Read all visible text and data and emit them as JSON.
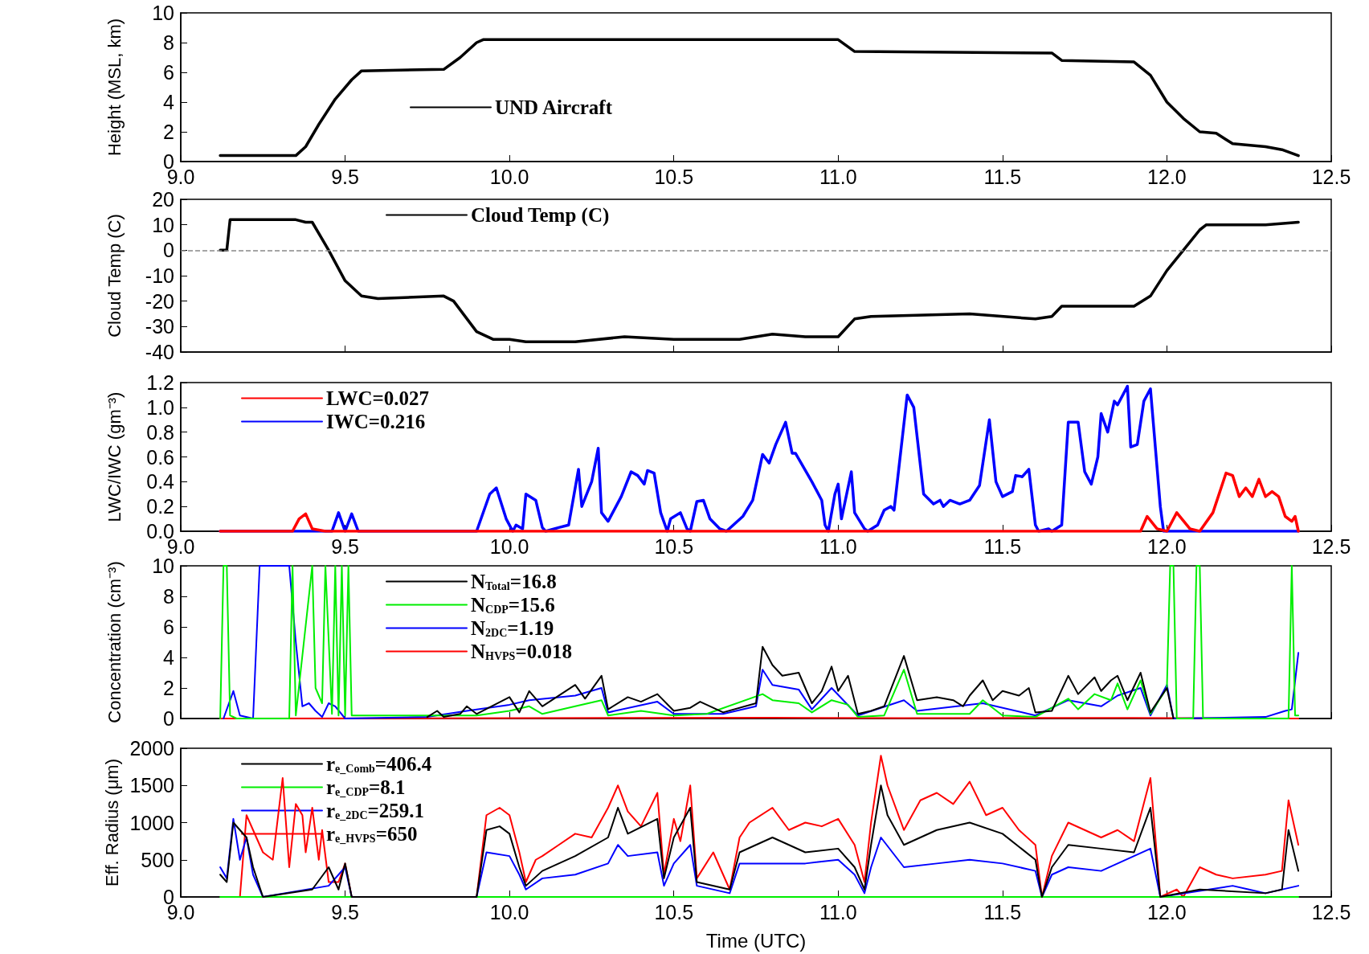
{
  "chart_data": [
    {
      "type": "line",
      "ylabel": "Height (MSL, km)",
      "xlim": [
        9,
        12.5
      ],
      "xticks": [
        {
          "value": 9,
          "label": "9.0"
        },
        {
          "value": 9.5,
          "label": "9.5"
        },
        {
          "value": 10,
          "label": "10.0"
        },
        {
          "value": 10.5,
          "label": "10.5"
        },
        {
          "value": 11,
          "label": "11.0"
        },
        {
          "value": 11.5,
          "label": "11.5"
        },
        {
          "value": 12,
          "label": "12.0"
        },
        {
          "value": 12.5,
          "label": "12.5"
        }
      ],
      "ylim": [
        0,
        10
      ],
      "yticks": [
        0,
        2,
        4,
        6,
        8,
        10
      ],
      "legend": "bottom left",
      "grid": false,
      "marker": "none",
      "series": [
        {
          "name": "UND Aircraft",
          "color": "#000000",
          "x": [
            9.12,
            9.35,
            9.38,
            9.42,
            9.47,
            9.52,
            9.55,
            9.8,
            9.85,
            9.9,
            9.92,
            11.0,
            11.05,
            11.65,
            11.68,
            11.9,
            11.95,
            12.0,
            12.05,
            12.1,
            12.15,
            12.2,
            12.3,
            12.35,
            12.4
          ],
          "values": [
            0.4,
            0.4,
            1.0,
            2.5,
            4.2,
            5.5,
            6.1,
            6.2,
            7.0,
            8.0,
            8.2,
            8.2,
            7.4,
            7.3,
            6.8,
            6.7,
            5.8,
            4.0,
            2.9,
            2.0,
            1.9,
            1.2,
            1.0,
            0.8,
            0.4
          ]
        }
      ]
    },
    {
      "type": "line",
      "ylabel": "Cloud Temp (C)",
      "xlim": [
        9,
        12.5
      ],
      "xticks": [
        {
          "value": 9,
          "label": null
        },
        {
          "value": 9.5,
          "label": null
        },
        {
          "value": 10,
          "label": null
        },
        {
          "value": 10.5,
          "label": null
        },
        {
          "value": 11,
          "label": null
        },
        {
          "value": 11.5,
          "label": null
        },
        {
          "value": 12,
          "label": null
        },
        {
          "value": 12.5,
          "label": null
        }
      ],
      "ylim": [
        -40,
        20
      ],
      "yticks": [
        -40,
        -30,
        -20,
        -10,
        0,
        10,
        20
      ],
      "tick_labels": "y",
      "legend": "top",
      "grid": false,
      "marker": "none",
      "ref_lines": [
        {
          "axis": "y",
          "value": 0,
          "color": "#888888",
          "line_style": "dashed"
        }
      ],
      "series": [
        {
          "name": "Cloud Temp (C)",
          "color": "#000000",
          "x": [
            9.12,
            9.14,
            9.15,
            9.25,
            9.35,
            9.38,
            9.4,
            9.45,
            9.5,
            9.55,
            9.6,
            9.8,
            9.83,
            9.9,
            9.95,
            10.0,
            10.05,
            10.2,
            10.35,
            10.5,
            10.7,
            10.8,
            10.9,
            11.0,
            11.05,
            11.1,
            11.4,
            11.6,
            11.65,
            11.68,
            11.9,
            11.95,
            12.0,
            12.05,
            12.1,
            12.12,
            12.2,
            12.3,
            12.4
          ],
          "values": [
            0,
            0,
            12,
            12,
            12,
            11,
            11,
            0,
            -12,
            -18,
            -19,
            -18,
            -20,
            -32,
            -35,
            -35,
            -36,
            -36,
            -34,
            -35,
            -35,
            -33,
            -34,
            -34,
            -27,
            -26,
            -25,
            -27,
            -26,
            -22,
            -22,
            -18,
            -8,
            0,
            8,
            10,
            10,
            10,
            11
          ]
        }
      ]
    },
    {
      "type": "line",
      "ylabel": "LWC/IWC (gm⁻³)",
      "xlim": [
        9,
        12.5
      ],
      "xticks": [
        {
          "value": 9,
          "label": "9.0"
        },
        {
          "value": 9.5,
          "label": "9.5"
        },
        {
          "value": 10,
          "label": "10.0"
        },
        {
          "value": 10.5,
          "label": "10.5"
        },
        {
          "value": 11,
          "label": "11.0"
        },
        {
          "value": 11.5,
          "label": "11.5"
        },
        {
          "value": 12,
          "label": "12.0"
        },
        {
          "value": 12.5,
          "label": "12.5"
        }
      ],
      "ylim": [
        0,
        1.2
      ],
      "yticks": [
        {
          "value": 0,
          "label": "0.0"
        },
        {
          "value": 0.2,
          "label": "0.2"
        },
        {
          "value": 0.4,
          "label": "0.4"
        },
        {
          "value": 0.6,
          "label": "0.6"
        },
        {
          "value": 0.8,
          "label": "0.8"
        },
        {
          "value": 1.0,
          "label": "1.0"
        },
        {
          "value": 1.2,
          "label": "1.2"
        }
      ],
      "legend": "top left",
      "grid": false,
      "marker": "none",
      "series": [
        {
          "name": "LWC=0.027",
          "color": "#ff0000",
          "x": [
            9.12,
            9.34,
            9.36,
            9.38,
            9.4,
            9.44,
            11.92,
            11.94,
            11.97,
            12.0,
            12.03,
            12.07,
            12.1,
            12.14,
            12.18,
            12.2,
            12.22,
            12.24,
            12.26,
            12.28,
            12.3,
            12.32,
            12.34,
            12.36,
            12.38,
            12.39,
            12.4
          ],
          "values": [
            0,
            0,
            0.1,
            0.14,
            0.02,
            0,
            0,
            0.12,
            0.02,
            0,
            0.15,
            0.02,
            0,
            0.15,
            0.47,
            0.45,
            0.28,
            0.35,
            0.28,
            0.42,
            0.28,
            0.32,
            0.28,
            0.12,
            0.08,
            0.12,
            0
          ]
        },
        {
          "name": "IWC=0.216",
          "color": "#0000ff",
          "x": [
            9.12,
            9.46,
            9.48,
            9.5,
            9.52,
            9.54,
            9.9,
            9.94,
            9.96,
            9.99,
            10.01,
            10.02,
            10.04,
            10.05,
            10.08,
            10.1,
            10.11,
            10.15,
            10.18,
            10.21,
            10.22,
            10.25,
            10.27,
            10.28,
            10.3,
            10.34,
            10.37,
            10.39,
            10.41,
            10.42,
            10.44,
            10.46,
            10.48,
            10.49,
            10.52,
            10.54,
            10.55,
            10.57,
            10.59,
            10.61,
            10.64,
            10.66,
            10.71,
            10.74,
            10.77,
            10.79,
            10.81,
            10.84,
            10.86,
            10.87,
            10.92,
            10.95,
            10.96,
            10.97,
            10.99,
            11.0,
            11.01,
            11.04,
            11.05,
            11.08,
            11.09,
            11.12,
            11.14,
            11.16,
            11.17,
            11.21,
            11.23,
            11.26,
            11.29,
            11.31,
            11.32,
            11.34,
            11.37,
            11.4,
            11.43,
            11.46,
            11.48,
            11.5,
            11.53,
            11.54,
            11.56,
            11.58,
            11.6,
            11.61,
            11.64,
            11.65,
            11.68,
            11.7,
            11.73,
            11.75,
            11.77,
            11.79,
            11.8,
            11.82,
            11.84,
            11.85,
            11.88,
            11.89,
            11.91,
            11.93,
            11.95,
            11.98,
            11.99,
            12.4
          ],
          "values": [
            0,
            0,
            0.15,
            0,
            0.14,
            0,
            0,
            0.3,
            0.35,
            0.1,
            0,
            0.05,
            0.02,
            0.3,
            0.25,
            0.03,
            0,
            0.03,
            0.05,
            0.5,
            0.2,
            0.4,
            0.67,
            0.15,
            0.08,
            0.28,
            0.48,
            0.45,
            0.38,
            0.49,
            0.47,
            0.15,
            0,
            0.1,
            0.15,
            0.02,
            0,
            0.24,
            0.25,
            0.1,
            0.02,
            0,
            0.12,
            0.25,
            0.62,
            0.55,
            0.7,
            0.88,
            0.63,
            0.63,
            0.4,
            0.25,
            0.05,
            0,
            0.3,
            0.38,
            0.1,
            0.48,
            0.15,
            0.02,
            0,
            0.05,
            0.17,
            0.2,
            0.17,
            1.1,
            1.0,
            0.3,
            0.22,
            0.25,
            0.2,
            0.25,
            0.22,
            0.25,
            0.37,
            0.9,
            0.4,
            0.28,
            0.32,
            0.45,
            0.44,
            0.5,
            0.05,
            0,
            0.02,
            0,
            0.05,
            0.88,
            0.88,
            0.48,
            0.38,
            0.6,
            0.95,
            0.8,
            1.05,
            1.02,
            1.17,
            0.68,
            0.7,
            1.05,
            1.15,
            0.2,
            0,
            0
          ]
        }
      ]
    },
    {
      "type": "line",
      "ylabel": "Concentration (cm⁻³)",
      "xlim": [
        9,
        12.5
      ],
      "xticks": [
        {
          "value": 9,
          "label": null
        },
        {
          "value": 9.5,
          "label": null
        },
        {
          "value": 10,
          "label": null
        },
        {
          "value": 10.5,
          "label": null
        },
        {
          "value": 11,
          "label": null
        },
        {
          "value": 11.5,
          "label": null
        },
        {
          "value": 12,
          "label": null
        },
        {
          "value": 12.5,
          "label": null
        }
      ],
      "ylim": [
        0,
        10
      ],
      "yticks": [
        0,
        2,
        4,
        6,
        8,
        10
      ],
      "tick_labels": "y",
      "legend": "top",
      "grid": false,
      "marker": "none",
      "series": [
        {
          "name": "N$_{Total}$=16.8",
          "color": "#000000",
          "x": [
            9.75,
            9.78,
            9.8,
            9.85,
            9.87,
            9.9,
            10.0,
            10.03,
            10.06,
            10.1,
            10.2,
            10.23,
            10.28,
            10.3,
            10.36,
            10.4,
            10.45,
            10.5,
            10.55,
            10.58,
            10.65,
            10.75,
            10.77,
            10.8,
            10.83,
            10.88,
            10.92,
            10.95,
            10.98,
            11.0,
            11.03,
            11.06,
            11.1,
            11.14,
            11.2,
            11.24,
            11.3,
            11.35,
            11.38,
            11.4,
            11.44,
            11.47,
            11.5,
            11.55,
            11.58,
            11.6,
            11.65,
            11.7,
            11.73,
            11.78,
            11.8,
            11.83,
            11.85,
            11.88,
            11.92,
            11.95,
            12.0,
            12.02
          ],
          "values": [
            0.1,
            0.5,
            0.1,
            0.3,
            0.8,
            0.3,
            1.4,
            0.4,
            1.8,
            0.8,
            2.2,
            1.3,
            2.8,
            0.6,
            1.4,
            1.1,
            1.6,
            0.5,
            0.7,
            1.1,
            0.4,
            1.0,
            4.7,
            3.5,
            2.8,
            3.0,
            1.0,
            1.8,
            3.4,
            1.8,
            2.8,
            0.3,
            0.5,
            0.8,
            4.1,
            1.2,
            1.4,
            1.2,
            0.8,
            1.5,
            2.5,
            1.2,
            1.8,
            1.5,
            2.0,
            0.4,
            0.5,
            2.8,
            1.6,
            2.7,
            1.8,
            2.5,
            2.8,
            1.2,
            3.0,
            0.4,
            2.0,
            0
          ]
        },
        {
          "name": "N$_{CDP}$=15.6",
          "color": "#00ee00",
          "x": [
            9.12,
            9.13,
            9.14,
            9.15,
            9.17,
            9.33,
            9.34,
            9.35,
            9.4,
            9.41,
            9.43,
            9.44,
            9.46,
            9.47,
            9.48,
            9.49,
            9.5,
            9.51,
            9.52,
            9.53,
            9.9,
            10.0,
            10.06,
            10.1,
            10.2,
            10.28,
            10.3,
            10.4,
            10.5,
            10.6,
            10.77,
            10.8,
            10.88,
            10.92,
            10.98,
            11.03,
            11.06,
            11.14,
            11.2,
            11.24,
            11.4,
            11.44,
            11.5,
            11.6,
            11.7,
            11.73,
            11.78,
            11.83,
            11.85,
            11.88,
            11.92,
            11.95,
            12.0,
            12.01,
            12.02,
            12.03,
            12.08,
            12.09,
            12.1,
            12.11,
            12.37,
            12.38,
            12.39,
            12.4
          ],
          "values": [
            0,
            10,
            10,
            0.2,
            0,
            0,
            10,
            0.2,
            10,
            2,
            1.0,
            10,
            0.3,
            10,
            0.2,
            10,
            0.2,
            10,
            0.2,
            0.2,
            0.2,
            0.5,
            0.8,
            0.3,
            0.8,
            1.2,
            0.2,
            0.5,
            0.2,
            0.3,
            1.6,
            1.2,
            1.0,
            0.4,
            1.2,
            0.9,
            0.1,
            0.2,
            3.2,
            0.3,
            0.3,
            1.2,
            0.2,
            0.1,
            1.3,
            0.6,
            1.6,
            1.2,
            2.3,
            0.6,
            2.5,
            0.3,
            2.0,
            10,
            10,
            0,
            0,
            10,
            10,
            0,
            0,
            10,
            0.2,
            0.2
          ]
        },
        {
          "name": "N$_{2DC}$=1.19",
          "color": "#0000ff",
          "x": [
            9.13,
            9.16,
            9.18,
            9.22,
            9.24,
            9.33,
            9.35,
            9.37,
            9.39,
            9.41,
            9.43,
            9.45,
            9.47,
            9.5,
            9.75,
            9.87,
            10.0,
            10.06,
            10.2,
            10.28,
            10.3,
            10.45,
            10.5,
            10.65,
            10.75,
            10.77,
            10.8,
            10.88,
            10.92,
            10.98,
            11.06,
            11.2,
            11.24,
            11.44,
            11.6,
            11.7,
            11.8,
            11.85,
            11.92,
            11.95,
            12.0,
            12.02,
            12.3,
            12.36,
            12.38,
            12.4
          ],
          "values": [
            0,
            1.8,
            0.2,
            0,
            10,
            10,
            5,
            0.8,
            1.0,
            0.5,
            0.1,
            1.0,
            0.8,
            0,
            0.1,
            0.5,
            0.9,
            1.2,
            1.5,
            2.0,
            0.4,
            1.1,
            0.3,
            0.3,
            0.8,
            3.2,
            2.2,
            1.9,
            0.6,
            2.0,
            0.2,
            1.2,
            0.5,
            1.0,
            0.2,
            1.2,
            0.8,
            1.5,
            2.0,
            0.2,
            2.2,
            0,
            0.1,
            0.5,
            0.6,
            4.3
          ]
        },
        {
          "name": "N$_{HVPS}$=0.018",
          "color": "#ff0000",
          "x": [
            9.12,
            10.8,
            11.2,
            11.9,
            12.4
          ],
          "values": [
            0,
            0.05,
            0.03,
            0.04,
            0
          ]
        }
      ]
    },
    {
      "type": "line",
      "xlabel": "Time (UTC)",
      "ylabel": "Eff. Radius (μm)",
      "xlim": [
        9,
        12.5
      ],
      "xticks": [
        {
          "value": 9,
          "label": "9.0"
        },
        {
          "value": 9.5,
          "label": "9.5"
        },
        {
          "value": 10,
          "label": "10.0"
        },
        {
          "value": 10.5,
          "label": "10.5"
        },
        {
          "value": 11,
          "label": "11.0"
        },
        {
          "value": 11.5,
          "label": "11.5"
        },
        {
          "value": 12,
          "label": "12.0"
        },
        {
          "value": 12.5,
          "label": "12.5"
        }
      ],
      "ylim": [
        0,
        2000
      ],
      "yticks": [
        0,
        500,
        1000,
        1500,
        2000
      ],
      "legend": "top left",
      "grid": false,
      "marker": "none",
      "series": [
        {
          "name": "r$_{e_Comb}$=406.4",
          "color": "#000000",
          "x": [
            9.12,
            9.14,
            9.16,
            9.2,
            9.22,
            9.25,
            9.4,
            9.45,
            9.48,
            9.5,
            9.52,
            9.9,
            9.93,
            9.97,
            10.0,
            10.03,
            10.05,
            10.1,
            10.2,
            10.3,
            10.33,
            10.36,
            10.45,
            10.47,
            10.5,
            10.55,
            10.57,
            10.67,
            10.7,
            10.8,
            10.9,
            11.0,
            11.05,
            11.08,
            11.1,
            11.13,
            11.15,
            11.2,
            11.3,
            11.4,
            11.5,
            11.6,
            11.62,
            11.65,
            11.7,
            11.8,
            11.9,
            11.95,
            11.98,
            12.1,
            12.3,
            12.35,
            12.37,
            12.4
          ],
          "values": [
            300,
            200,
            1000,
            800,
            400,
            0,
            100,
            400,
            100,
            450,
            0,
            0,
            900,
            950,
            850,
            400,
            150,
            350,
            550,
            800,
            1200,
            850,
            1050,
            250,
            800,
            1200,
            200,
            100,
            600,
            800,
            600,
            650,
            400,
            100,
            700,
            1500,
            1100,
            700,
            900,
            1000,
            850,
            500,
            0,
            400,
            700,
            650,
            600,
            1200,
            0,
            100,
            50,
            100,
            900,
            350
          ]
        },
        {
          "name": "r$_{e_CDP}$=8.1",
          "color": "#00ee00",
          "x": [
            9.12,
            12.4
          ],
          "values": [
            0,
            0
          ]
        },
        {
          "name": "r$_{e_2DC}$=259.1",
          "color": "#0000ff",
          "x": [
            9.12,
            9.14,
            9.16,
            9.18,
            9.2,
            9.22,
            9.25,
            9.45,
            9.5,
            9.52,
            9.9,
            9.93,
            10.0,
            10.03,
            10.05,
            10.1,
            10.2,
            10.3,
            10.33,
            10.36,
            10.45,
            10.47,
            10.5,
            10.55,
            10.57,
            10.67,
            10.7,
            10.8,
            10.9,
            11.0,
            11.05,
            11.08,
            11.1,
            11.13,
            11.2,
            11.3,
            11.4,
            11.5,
            11.6,
            11.62,
            11.65,
            11.7,
            11.8,
            11.95,
            11.98,
            12.2,
            12.25,
            12.3,
            12.4
          ],
          "values": [
            400,
            250,
            1050,
            500,
            800,
            300,
            0,
            150,
            400,
            0,
            0,
            600,
            550,
            300,
            100,
            250,
            300,
            450,
            700,
            550,
            600,
            150,
            450,
            700,
            150,
            50,
            450,
            450,
            450,
            500,
            300,
            50,
            400,
            800,
            400,
            450,
            500,
            450,
            350,
            0,
            300,
            400,
            350,
            650,
            0,
            150,
            100,
            50,
            150
          ]
        },
        {
          "name": "r$_{e_HVPS}$=650",
          "color": "#ff0000",
          "x": [
            9.18,
            9.2,
            9.22,
            9.25,
            9.28,
            9.31,
            9.33,
            9.35,
            9.37,
            9.38,
            9.4,
            9.42,
            9.43,
            9.45,
            9.48,
            9.5,
            9.52,
            9.9,
            9.93,
            9.97,
            10.0,
            10.03,
            10.05,
            10.08,
            10.1,
            10.15,
            10.2,
            10.25,
            10.3,
            10.33,
            10.36,
            10.4,
            10.45,
            10.47,
            10.5,
            10.52,
            10.55,
            10.57,
            10.62,
            10.65,
            10.67,
            10.7,
            10.73,
            10.8,
            10.85,
            10.9,
            10.95,
            11.0,
            11.05,
            11.08,
            11.1,
            11.13,
            11.15,
            11.2,
            11.25,
            11.3,
            11.35,
            11.4,
            11.45,
            11.5,
            11.55,
            11.6,
            11.62,
            11.65,
            11.7,
            11.75,
            11.8,
            11.85,
            11.9,
            11.95,
            11.98,
            12.03,
            12.05,
            12.1,
            12.15,
            12.2,
            12.3,
            12.35,
            12.37,
            12.4
          ],
          "values": [
            0,
            1100,
            900,
            600,
            500,
            1600,
            400,
            1250,
            1100,
            600,
            1200,
            500,
            900,
            200,
            200,
            450,
            0,
            0,
            1100,
            1200,
            1100,
            600,
            200,
            500,
            550,
            700,
            850,
            800,
            1200,
            1500,
            1150,
            950,
            1400,
            300,
            1050,
            750,
            1500,
            250,
            600,
            300,
            100,
            800,
            1000,
            1200,
            900,
            1000,
            950,
            1050,
            700,
            200,
            1000,
            1900,
            1500,
            900,
            1300,
            1400,
            1250,
            1550,
            1100,
            1200,
            900,
            700,
            0,
            550,
            1000,
            900,
            800,
            900,
            750,
            1600,
            0,
            100,
            0,
            400,
            300,
            250,
            300,
            350,
            1300,
            700
          ]
        }
      ]
    }
  ]
}
